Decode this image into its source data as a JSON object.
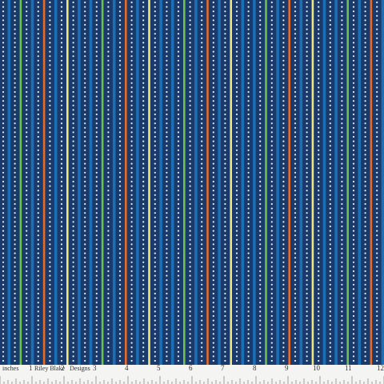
{
  "fabric": {
    "background": "#1a3a6b",
    "colors": {
      "blue": "#1c6fb5",
      "green": "#6cc24a",
      "orange": "#e66a28",
      "yellow": "#f2e67a",
      "dot": "#e8eef5"
    },
    "stripe_sequence": [
      "dot",
      "blue",
      "dot",
      "green",
      "dot",
      "blue",
      "dot",
      "orange",
      "dot",
      "blue",
      "dot",
      "yellow",
      "dot",
      "blue"
    ]
  },
  "ruler": {
    "unit_label": "inches",
    "brand": "Riley Blake",
    "brand_suffix": "Designs",
    "numbers": [
      "1",
      "2",
      "3",
      "4",
      "5",
      "6",
      "7",
      "8",
      "9",
      "10",
      "11",
      "12"
    ]
  }
}
